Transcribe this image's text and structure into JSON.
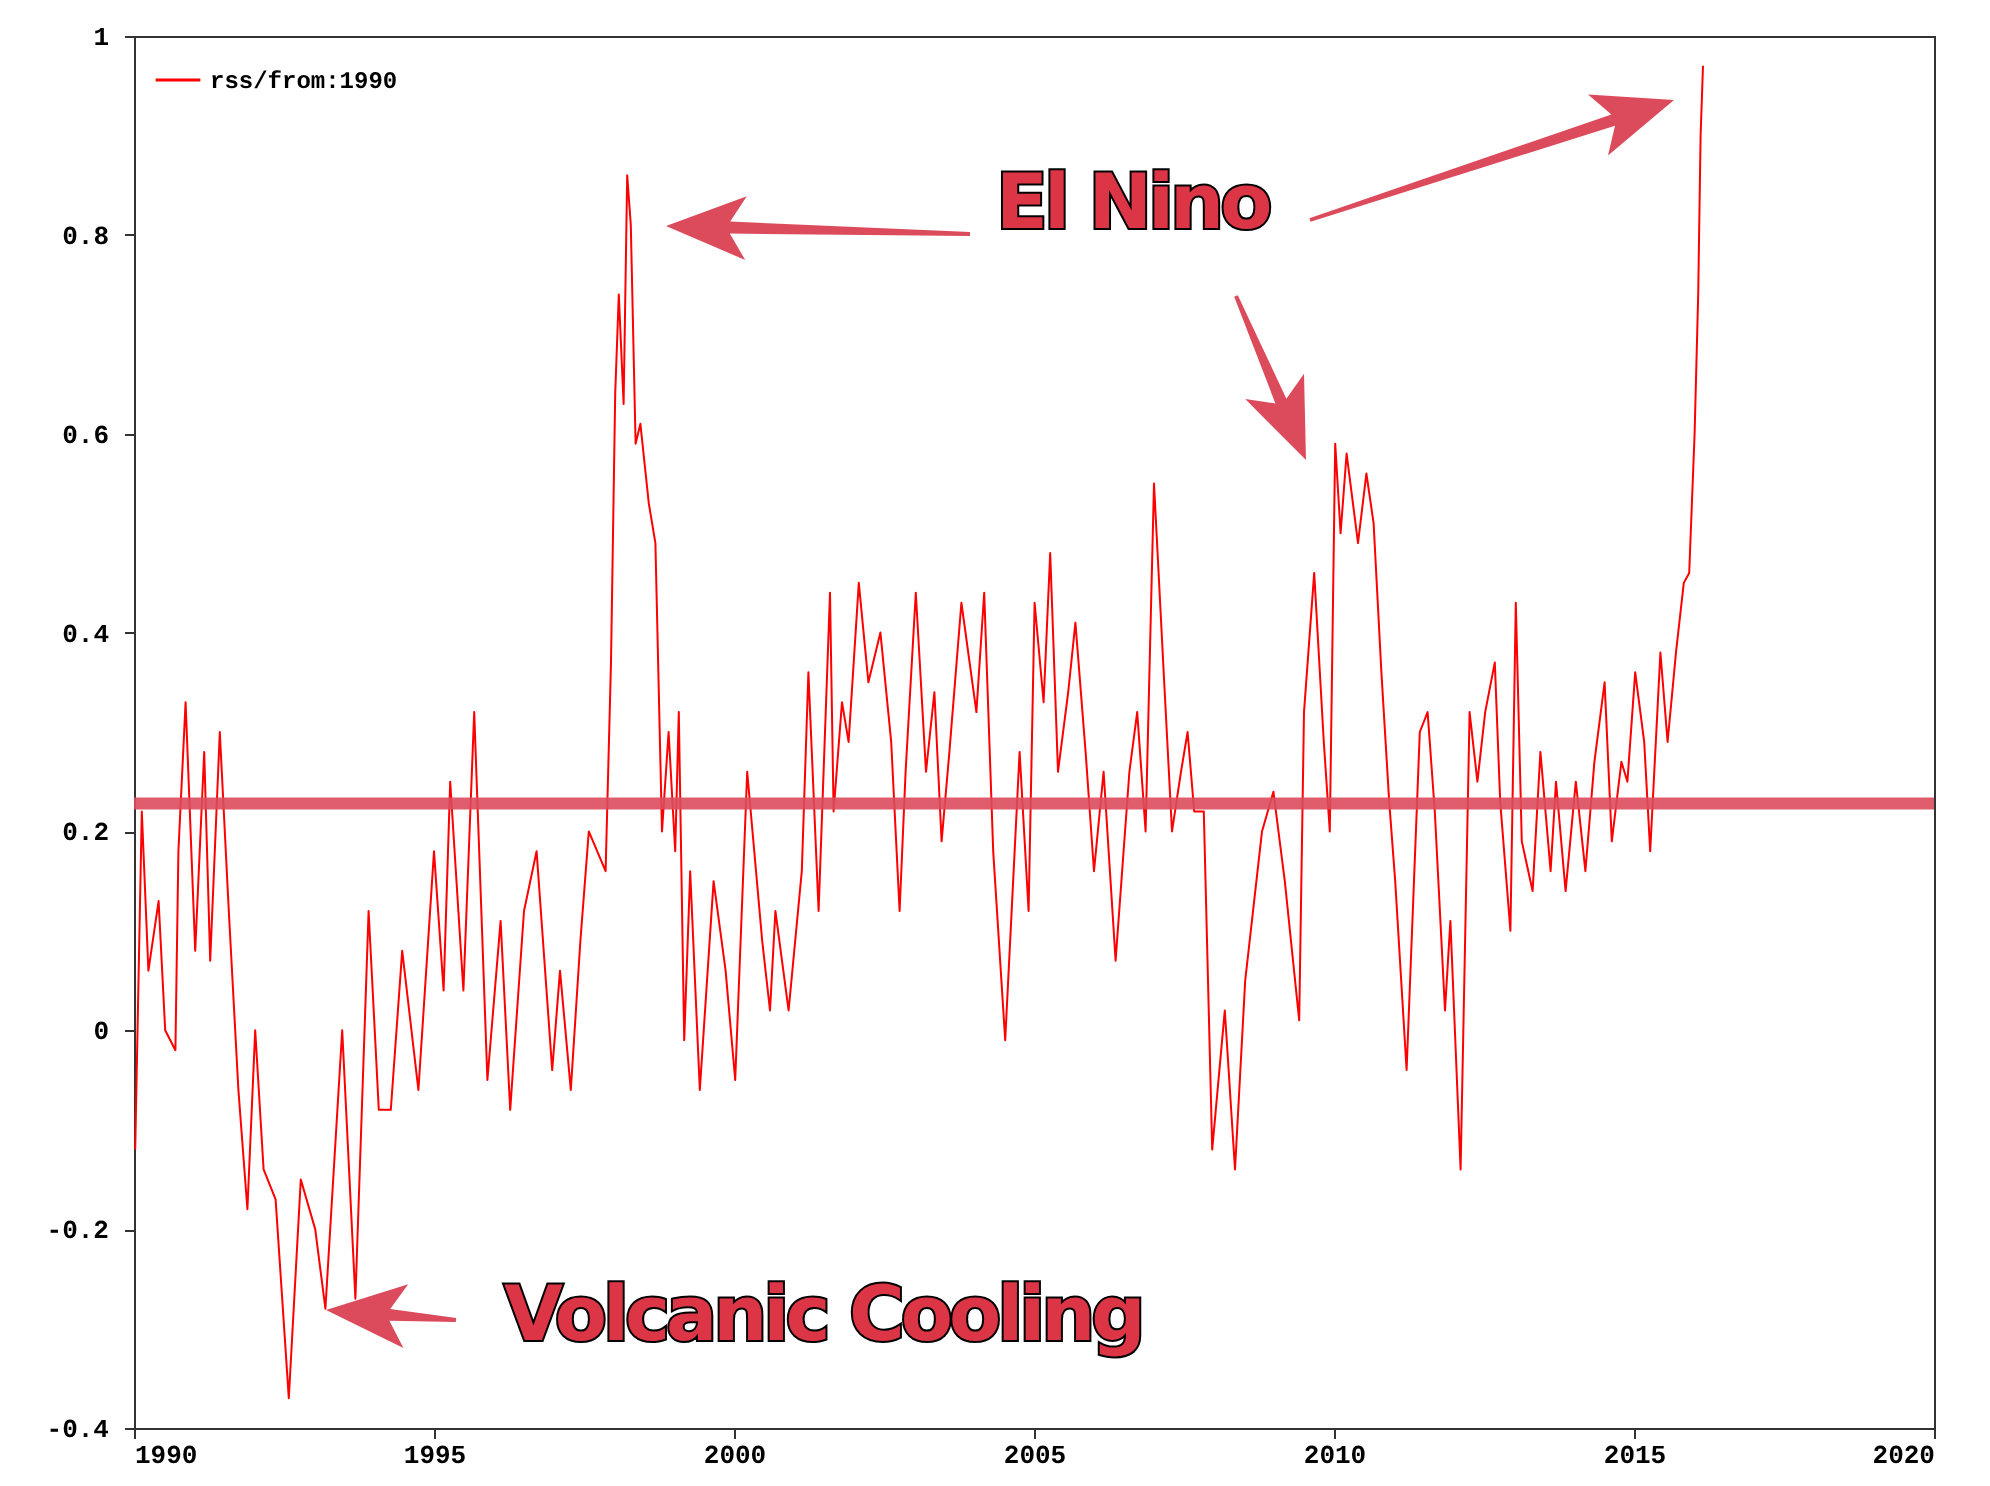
{
  "chart_data": {
    "type": "line",
    "x": [
      1990.02,
      1990.13,
      1990.24,
      1990.41,
      1990.52,
      1990.69,
      1990.74,
      1990.86,
      1991.02,
      1991.17,
      1991.27,
      1991.43,
      1991.58,
      1991.74,
      1991.89,
      1992.02,
      1992.16,
      1992.36,
      1992.58,
      1992.78,
      1993.02,
      1993.19,
      1993.47,
      1993.69,
      1993.91,
      1994.08,
      1994.28,
      1994.47,
      1994.74,
      1995.0,
      1995.16,
      1995.27,
      1995.49,
      1995.67,
      1995.89,
      1996.11,
      1996.27,
      1996.5,
      1996.71,
      1996.97,
      1997.1,
      1997.28,
      1997.44,
      1997.58,
      1997.86,
      1997.95,
      1998.02,
      1998.08,
      1998.16,
      1998.22,
      1998.28,
      1998.36,
      1998.44,
      1998.58,
      1998.69,
      1998.8,
      1998.91,
      1999.02,
      1999.08,
      1999.17,
      1999.27,
      1999.43,
      1999.66,
      1999.86,
      2000.02,
      2000.22,
      2000.47,
      2000.6,
      2000.69,
      2000.91,
      2001.13,
      2001.24,
      2001.41,
      2001.6,
      2001.66,
      2001.8,
      2001.91,
      2002.08,
      2002.24,
      2002.44,
      2002.62,
      2002.76,
      2002.86,
      2003.03,
      2003.2,
      2003.34,
      2003.46,
      2003.59,
      2003.79,
      2004.04,
      2004.17,
      2004.32,
      2004.52,
      2004.76,
      2004.91,
      2005.01,
      2005.16,
      2005.27,
      2005.4,
      2005.57,
      2005.69,
      2005.86,
      2006.0,
      2006.16,
      2006.36,
      2006.59,
      2006.72,
      2006.86,
      2007.0,
      2007.17,
      2007.3,
      2007.45,
      2007.56,
      2007.67,
      2007.83,
      2007.97,
      2008.18,
      2008.35,
      2008.52,
      2008.8,
      2008.99,
      2009.18,
      2009.42,
      2009.5,
      2009.67,
      2009.83,
      2009.93,
      2010.02,
      2010.11,
      2010.21,
      2010.4,
      2010.54,
      2010.66,
      2010.79,
      2010.92,
      2011.02,
      2011.21,
      2011.43,
      2011.56,
      2011.68,
      2011.85,
      2011.94,
      2012.11,
      2012.26,
      2012.39,
      2012.52,
      2012.68,
      2012.77,
      2012.94,
      2013.03,
      2013.13,
      2013.31,
      2013.44,
      2013.61,
      2013.7,
      2013.86,
      2014.03,
      2014.19,
      2014.34,
      2014.51,
      2014.63,
      2014.79,
      2014.89,
      2015.02,
      2015.17,
      2015.27,
      2015.44,
      2015.56,
      2015.7,
      2015.83,
      2015.92,
      2016.01,
      2016.07,
      2016.11,
      2016.15
    ],
    "series": [
      {
        "name": "rss/from:1990",
        "color": "#ff0000",
        "values": [
          -0.12,
          0.22,
          0.06,
          0.13,
          0.0,
          -0.02,
          0.18,
          0.33,
          0.08,
          0.28,
          0.07,
          0.3,
          0.12,
          -0.06,
          -0.18,
          0.0,
          -0.14,
          -0.17,
          -0.37,
          -0.15,
          -0.2,
          -0.28,
          0.0,
          -0.27,
          0.12,
          -0.08,
          -0.08,
          0.08,
          -0.06,
          0.18,
          0.04,
          0.25,
          0.04,
          0.32,
          -0.05,
          0.11,
          -0.08,
          0.12,
          0.18,
          -0.04,
          0.06,
          -0.06,
          0.09,
          0.2,
          0.16,
          0.37,
          0.64,
          0.74,
          0.63,
          0.86,
          0.81,
          0.59,
          0.61,
          0.53,
          0.49,
          0.2,
          0.3,
          0.18,
          0.32,
          -0.01,
          0.16,
          -0.06,
          0.15,
          0.06,
          -0.05,
          0.26,
          0.09,
          0.02,
          0.12,
          0.02,
          0.16,
          0.36,
          0.12,
          0.44,
          0.22,
          0.33,
          0.29,
          0.45,
          0.35,
          0.4,
          0.29,
          0.12,
          0.26,
          0.44,
          0.26,
          0.34,
          0.19,
          0.28,
          0.43,
          0.32,
          0.44,
          0.18,
          -0.01,
          0.28,
          0.12,
          0.43,
          0.33,
          0.48,
          0.26,
          0.34,
          0.41,
          0.28,
          0.16,
          0.26,
          0.07,
          0.26,
          0.32,
          0.2,
          0.55,
          0.35,
          0.2,
          0.26,
          0.3,
          0.22,
          0.22,
          -0.12,
          0.02,
          -0.14,
          0.05,
          0.2,
          0.24,
          0.15,
          0.01,
          0.32,
          0.46,
          0.29,
          0.2,
          0.59,
          0.5,
          0.58,
          0.49,
          0.56,
          0.51,
          0.36,
          0.23,
          0.15,
          -0.04,
          0.3,
          0.32,
          0.22,
          0.02,
          0.11,
          -0.14,
          0.32,
          0.25,
          0.32,
          0.37,
          0.23,
          0.1,
          0.43,
          0.19,
          0.14,
          0.28,
          0.16,
          0.25,
          0.14,
          0.25,
          0.16,
          0.27,
          0.35,
          0.19,
          0.27,
          0.25,
          0.36,
          0.29,
          0.18,
          0.38,
          0.29,
          0.38,
          0.45,
          0.46,
          0.6,
          0.74,
          0.9,
          0.97
        ]
      }
    ],
    "xlim": [
      1990,
      2020
    ],
    "xticks": [
      1990,
      1995,
      2000,
      2005,
      2010,
      2015,
      2020
    ],
    "ylim": [
      -0.4,
      1
    ],
    "yticks": [
      -0.4,
      -0.2,
      0,
      0.2,
      0.4,
      0.6,
      0.8,
      1
    ],
    "ref_lines": [
      {
        "axis": "y",
        "value": 0.228,
        "color": "#dc4b5c"
      }
    ],
    "annotations": [
      "El Nino",
      "Volcanic Cooling"
    ],
    "legend": "top left",
    "grid": false
  }
}
